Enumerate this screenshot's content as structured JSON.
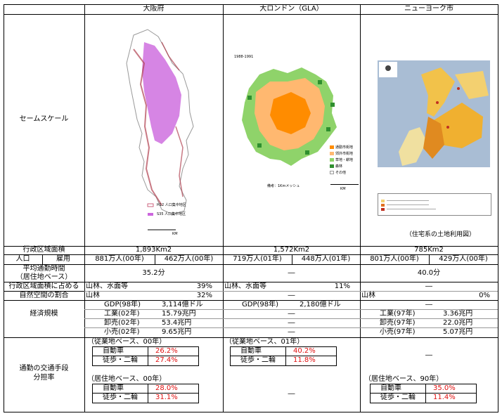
{
  "columns": {
    "osaka": "大阪府",
    "london": "大ロンドン（GLA）",
    "ny": "ニューヨーク市"
  },
  "rows": {
    "seam_scale": "セームスケール",
    "area": "行政区域面積",
    "population": "人口",
    "employment": "雇用",
    "commute_time_1": "平均通勤時間",
    "commute_time_2": "（居住地ベース）",
    "nature_1": "行政区域面積に占める",
    "nature_2": "自然空間の割合",
    "economy": "経済規模",
    "mode_1": "通勤の交通手段",
    "mode_2": "分担率"
  },
  "maps": {
    "london_year": "1988-1991",
    "london_legend": [
      "通勤市街地",
      "郊外市街地",
      "草地・耕地",
      "森林",
      "その他"
    ],
    "london_note": "備考：1Kmメッシュ",
    "london_scale": "KM",
    "osaka_legend": [
      "H12 人口集中地区",
      "S35 人口集中地区"
    ],
    "osaka_scale": "KM",
    "ny_caption": "（住宅系の土地利用図）"
  },
  "area": {
    "osaka": "1,893Km2",
    "london": "1,572Km2",
    "ny": "785Km2"
  },
  "population": {
    "osaka_pop": "881万人(00年)",
    "osaka_emp": "462万人(00年)",
    "london_pop": "719万人(01年)",
    "london_emp": "448万人(01年)",
    "ny_pop": "801万人(00年)",
    "ny_emp": "429万人(00年)"
  },
  "commute_time": {
    "osaka": "35.2分",
    "london": "―",
    "ny": "40.0分"
  },
  "nature": {
    "osaka_a_label": "山林、水面等",
    "osaka_a_val": "39%",
    "osaka_b_label": "山林",
    "osaka_b_val": "32%",
    "london_a_label": "山林、水面等",
    "london_a_val": "11%",
    "london_b": "―",
    "ny_a": "―",
    "ny_b_label": "山林",
    "ny_b_val": "0%"
  },
  "economy": {
    "osaka": [
      {
        "label": "GDP(98年)",
        "value": "3,114億ドル"
      },
      {
        "label": "工業(02年)",
        "value": "15.79兆円"
      },
      {
        "label": "卸売(02年)",
        "value": "53.4兆円"
      },
      {
        "label": "小売(02年)",
        "value": "9.65兆円"
      }
    ],
    "london": [
      {
        "label": "GDP(98年)",
        "value": "2,180億ドル"
      },
      {
        "label": "",
        "value": "―"
      },
      {
        "label": "",
        "value": "―"
      },
      {
        "label": "",
        "value": "―"
      }
    ],
    "ny": [
      {
        "label": "",
        "value": "―"
      },
      {
        "label": "工業(97年)",
        "value": "3.36兆円"
      },
      {
        "label": "卸売(97年)",
        "value": "22.0兆円"
      },
      {
        "label": "小売(97年)",
        "value": "5.07兆円"
      }
    ]
  },
  "modal": {
    "osaka_work_title": "（従業地ベース、00年）",
    "osaka_work": [
      {
        "label": "自動車",
        "value": "26.2%"
      },
      {
        "label": "徒歩・二輪",
        "value": "27.4%"
      }
    ],
    "osaka_res_title": "（居住地ベース、00年）",
    "osaka_res": [
      {
        "label": "自動車",
        "value": "28.0%"
      },
      {
        "label": "徒歩・二輪",
        "value": "31.1%"
      }
    ],
    "london_work_title": "（従業地ベース、01年）",
    "london_work": [
      {
        "label": "自動車",
        "value": "40.2%"
      },
      {
        "label": "徒歩・二輪",
        "value": "11.8%"
      }
    ],
    "london_res": "―",
    "ny_work": "―",
    "ny_res_title": "（居住地ベース、90年）",
    "ny_res": [
      {
        "label": "自動車",
        "value": "35.0%"
      },
      {
        "label": "徒歩・二輪",
        "value": "11.4%"
      }
    ]
  },
  "colors": {
    "accent_red": "#e01010",
    "osaka_dense": "#cc66dd",
    "london_urban": "#ff8c00",
    "london_suburb": "#ffb870",
    "london_grass": "#8fd36a",
    "london_forest": "#2f8f2f"
  }
}
